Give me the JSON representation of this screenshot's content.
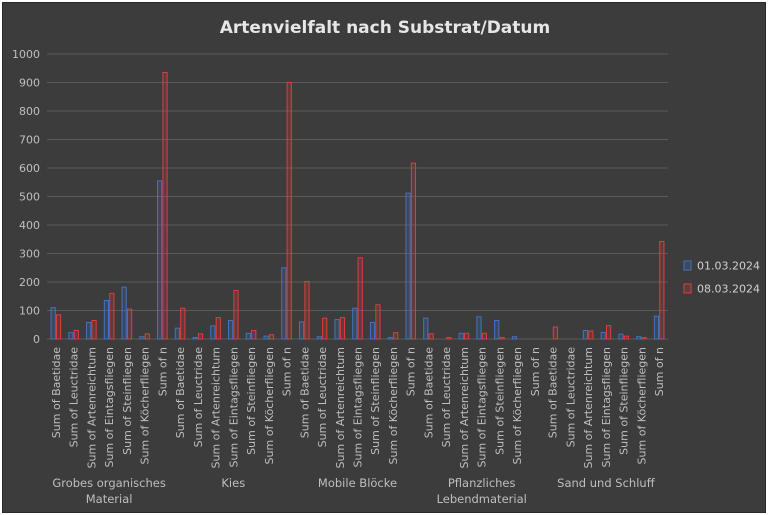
{
  "chart_data": {
    "type": "bar",
    "title": "Artenvielfalt nach Substrat/Datum",
    "xlabel": "",
    "ylabel": "",
    "ylim": [
      0,
      1000
    ],
    "yticks": [
      0,
      100,
      200,
      300,
      400,
      500,
      600,
      700,
      800,
      900,
      1000
    ],
    "grid": true,
    "legend_position": "right",
    "groups": [
      {
        "name": "Grobes organisches Material",
        "label_lines": [
          "Grobes organisches",
          "Material"
        ]
      },
      {
        "name": "Kies",
        "label_lines": [
          "Kies"
        ]
      },
      {
        "name": "Mobile Blöcke",
        "label_lines": [
          "Mobile Blöcke"
        ]
      },
      {
        "name": "Pflanzliches Lebendmaterial",
        "label_lines": [
          "Pflanzliches",
          "Lebendmaterial"
        ]
      },
      {
        "name": "Sand und Schluff",
        "label_lines": [
          "Sand und Schluff"
        ]
      }
    ],
    "categories": [
      "Sum of Baetidae",
      "Sum of Leuctridae",
      "Sum of Artenreichtum",
      "Sum of Eintagsfliegen",
      "Sum of Steinfliegen",
      "Sum of Köcherfliegen",
      "Sum of n"
    ],
    "series": [
      {
        "name": "01.03.2024",
        "color": "#4472c4",
        "values": [
          [
            110,
            22,
            58,
            135,
            182,
            8,
            555
          ],
          [
            38,
            5,
            46,
            65,
            20,
            10,
            250
          ],
          [
            60,
            8,
            68,
            108,
            58,
            5,
            512
          ],
          [
            73,
            0,
            20,
            78,
            65,
            8,
            0
          ],
          [
            0,
            0,
            30,
            23,
            17,
            8,
            80
          ]
        ]
      },
      {
        "name": "08.03.2024",
        "color": "#e03c3c",
        "values": [
          [
            85,
            30,
            65,
            160,
            105,
            18,
            935
          ],
          [
            108,
            18,
            75,
            170,
            30,
            15,
            900
          ],
          [
            202,
            73,
            75,
            285,
            120,
            22,
            617
          ],
          [
            18,
            5,
            20,
            20,
            5,
            0,
            0
          ],
          [
            42,
            0,
            28,
            47,
            10,
            5,
            342
          ]
        ]
      }
    ]
  }
}
